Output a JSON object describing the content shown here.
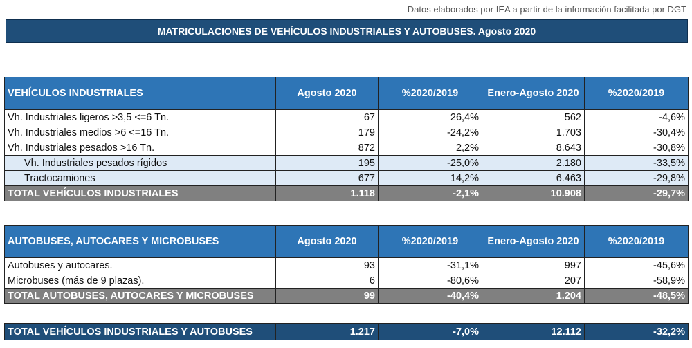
{
  "source_note": "Datos elaborados por IEA a partir de la información facilitada por DGT",
  "banner": "MATRICULACIONES DE VEHÍCULOS INDUSTRIALES Y AUTOBUSES.  Agosto 2020",
  "industrial": {
    "header": [
      "VEHÍCULOS INDUSTRIALES",
      "Agosto 2020",
      "%2020/2019",
      "Enero-Agosto 2020",
      "%2020/2019"
    ],
    "rows": [
      {
        "label": "Vh. Industriales ligeros >3,5 <=6 Tn.",
        "aug": "67",
        "pct1": "26,4%",
        "ytd": "562",
        "pct2": "-4,6%"
      },
      {
        "label": "Vh. Industriales medios >6  <=16 Tn.",
        "aug": "179",
        "pct1": "-24,2%",
        "ytd": "1.703",
        "pct2": "-30,4%"
      },
      {
        "label": "Vh. Industriales  pesados >16 Tn.",
        "aug": "872",
        "pct1": "2,2%",
        "ytd": "8.643",
        "pct2": "-30,8%"
      },
      {
        "label": "Vh. Industriales pesados rígidos",
        "aug": "195",
        "pct1": "-25,0%",
        "ytd": "2.180",
        "pct2": "-33,5%"
      },
      {
        "label": "Tractocamiones",
        "aug": "677",
        "pct1": "14,2%",
        "ytd": "6.463",
        "pct2": "-29,8%"
      }
    ],
    "total": {
      "label": "TOTAL VEHÍCULOS INDUSTRIALES",
      "aug": "1.118",
      "pct1": "-2,1%",
      "ytd": "10.908",
      "pct2": "-29,7%"
    }
  },
  "buses": {
    "header": [
      "AUTOBUSES, AUTOCARES Y MICROBUSES",
      "Agosto 2020",
      "%2020/2019",
      "Enero-Agosto 2020",
      "%2020/2019"
    ],
    "rows": [
      {
        "label": "Autobuses y autocares.",
        "aug": "93",
        "pct1": "-31,1%",
        "ytd": "997",
        "pct2": "-45,6%"
      },
      {
        "label": "Microbuses (más de 9 plazas).",
        "aug": "6",
        "pct1": "-80,6%",
        "ytd": "207",
        "pct2": "-58,9%"
      }
    ],
    "total": {
      "label": "TOTAL AUTOBUSES, AUTOCARES Y MICROBUSES",
      "aug": "99",
      "pct1": "-40,4%",
      "ytd": "1.204",
      "pct2": "-48,5%"
    }
  },
  "grand_total": {
    "label": "TOTAL VEHÍCULOS INDUSTRIALES Y AUTOBUSES",
    "aug": "1.217",
    "pct1": "-7,0%",
    "ytd": "12.112",
    "pct2": "-32,2%"
  }
}
